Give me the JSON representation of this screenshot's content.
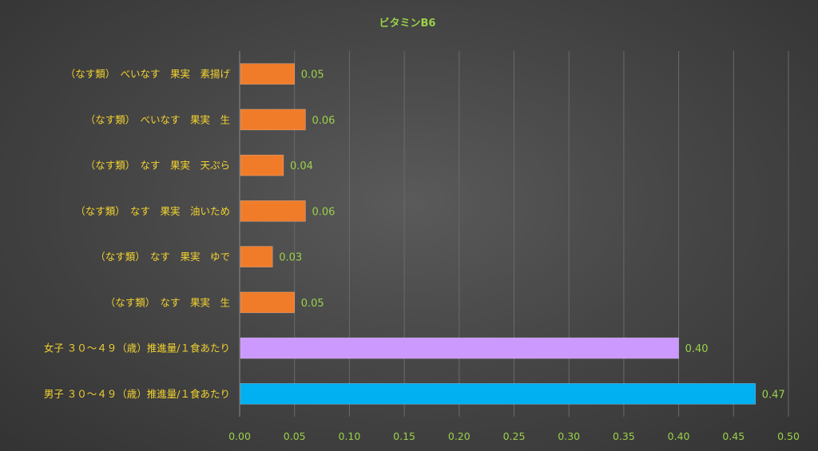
{
  "chart_data": {
    "type": "bar",
    "orientation": "horizontal",
    "title": "ビタミンB6",
    "xlabel": "",
    "ylabel": "",
    "xlim": [
      0,
      0.5
    ],
    "x_ticks": [
      "0.00",
      "0.05",
      "0.10",
      "0.15",
      "0.20",
      "0.25",
      "0.30",
      "0.35",
      "0.40",
      "0.45",
      "0.50"
    ],
    "grid": true,
    "categories": [
      "（なす類）　べいなす　果実　素揚げ",
      "（なす類）　べいなす　果実　生",
      "（なす類）　なす　果実　天ぷら",
      "（なす類）　なす　果実　油いため",
      "（なす類）　なす　果実　ゆで",
      "（なす類）　なす　果実　生",
      "女子 ３０～４９（歳）推進量/１食あたり",
      "男子 ３０～４９（歳）推進量/１食あたり"
    ],
    "values": [
      0.05,
      0.06,
      0.04,
      0.06,
      0.03,
      0.05,
      0.4,
      0.47
    ],
    "value_labels": [
      "0.05",
      "0.06",
      "0.04",
      "0.06",
      "0.03",
      "0.05",
      "0.40",
      "0.47"
    ],
    "bar_colors": [
      "#f07c2a",
      "#f07c2a",
      "#f07c2a",
      "#f07c2a",
      "#f07c2a",
      "#f07c2a",
      "#cc99ff",
      "#00b0f0"
    ]
  }
}
